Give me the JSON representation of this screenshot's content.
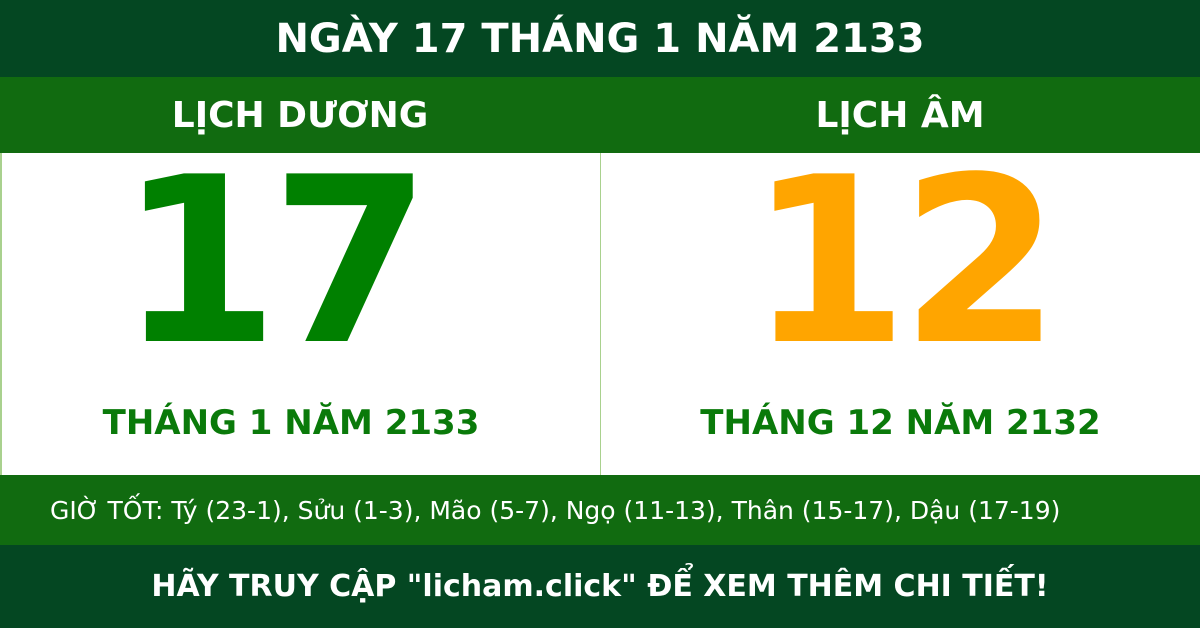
{
  "title": "NGÀY 17 THÁNG 1 NĂM 2133",
  "solar": {
    "heading": "LỊCH DƯƠNG",
    "day": "17",
    "month_year": "THÁNG 1 NĂM 2133",
    "color": "#008000"
  },
  "lunar": {
    "heading": "LỊCH ÂM",
    "day": "12",
    "month_year": "THÁNG 12 NĂM 2132",
    "color": "#ffa500"
  },
  "good_hours": "GIỜ TỐT: Tý (23-1), Sửu (1-3), Mão (5-7), Ngọ (11-13), Thân (15-17), Dậu (17-19)",
  "footer": "HÃY TRUY CẬP \"licham.click\" ĐỂ XEM THÊM CHI TIẾT!",
  "colors": {
    "dark_green": "#044722",
    "band_green": "#116b10"
  }
}
